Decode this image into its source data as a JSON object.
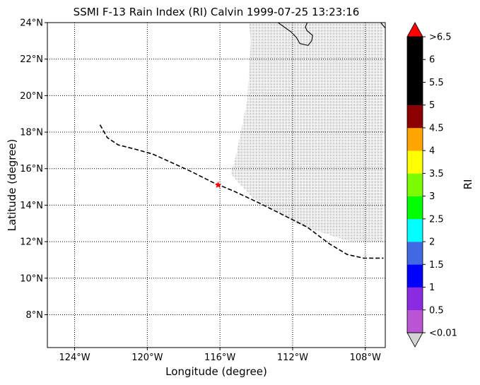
{
  "chart_data": {
    "type": "map",
    "title": "SSMI F-13 Rain Index (RI) Calvin 1999-07-25 13:23:16",
    "xlabel": "Longitude (degree)",
    "ylabel": "Latitude (degree)",
    "xlim": [
      -125.5,
      -106.9
    ],
    "ylim": [
      6.2,
      24.0
    ],
    "x_ticks": [
      -124,
      -120,
      -116,
      -112,
      -108
    ],
    "x_tick_labels": [
      "124°W",
      "120°W",
      "116°W",
      "112°W",
      "108°W"
    ],
    "y_ticks": [
      8,
      10,
      12,
      14,
      16,
      18,
      20,
      22,
      24
    ],
    "y_tick_labels": [
      "8°N",
      "10°N",
      "12°N",
      "14°N",
      "16°N",
      "18°N",
      "20°N",
      "22°N",
      "24°N"
    ],
    "grid": "dotted",
    "swath_color": "#d3d3d3",
    "swath_polygon": [
      {
        "lon": -114.4,
        "lat": 24.0
      },
      {
        "lon": -107.0,
        "lat": 24.0
      },
      {
        "lon": -107.0,
        "lat": 12.0
      },
      {
        "lon": -109.0,
        "lat": 12.05
      },
      {
        "lon": -111.6,
        "lat": 12.9
      },
      {
        "lon": -114.2,
        "lat": 14.4
      },
      {
        "lon": -115.4,
        "lat": 15.7
      },
      {
        "lon": -115.1,
        "lat": 16.8
      },
      {
        "lon": -114.5,
        "lat": 19.7
      },
      {
        "lon": -114.3,
        "lat": 23.0
      }
    ],
    "track": [
      {
        "lon": -122.6,
        "lat": 18.4
      },
      {
        "lon": -122.2,
        "lat": 17.7
      },
      {
        "lon": -121.6,
        "lat": 17.3
      },
      {
        "lon": -120.6,
        "lat": 17.05
      },
      {
        "lon": -119.7,
        "lat": 16.8
      },
      {
        "lon": -118.7,
        "lat": 16.35
      },
      {
        "lon": -117.6,
        "lat": 15.85
      },
      {
        "lon": -116.4,
        "lat": 15.25
      },
      {
        "lon": -115.2,
        "lat": 14.75
      },
      {
        "lon": -113.9,
        "lat": 14.15
      },
      {
        "lon": -112.6,
        "lat": 13.5
      },
      {
        "lon": -111.2,
        "lat": 12.8
      },
      {
        "lon": -110.0,
        "lat": 11.9
      },
      {
        "lon": -109.0,
        "lat": 11.3
      },
      {
        "lon": -108.1,
        "lat": 11.1
      },
      {
        "lon": -107.0,
        "lat": 11.1
      }
    ],
    "storm_position": {
      "lon": -116.1,
      "lat": 15.1
    },
    "storm_marker_color": "#ff0000",
    "coastlines": [
      [
        {
          "lon": -112.8,
          "lat": 24.0
        },
        {
          "lon": -112.1,
          "lat": 23.5
        },
        {
          "lon": -111.8,
          "lat": 23.2
        },
        {
          "lon": -111.6,
          "lat": 22.85
        },
        {
          "lon": -111.15,
          "lat": 22.75
        },
        {
          "lon": -110.95,
          "lat": 23.0
        },
        {
          "lon": -110.9,
          "lat": 23.3
        },
        {
          "lon": -111.2,
          "lat": 23.55
        },
        {
          "lon": -111.3,
          "lat": 23.75
        },
        {
          "lon": -111.2,
          "lat": 24.0
        }
      ],
      [
        {
          "lon": -107.15,
          "lat": 24.0
        },
        {
          "lon": -106.9,
          "lat": 23.7
        }
      ]
    ],
    "colorbar": {
      "label": "RI",
      "tick_labels": [
        "<0.01",
        "0.5",
        "1",
        "1.5",
        "2",
        "2.5",
        "3",
        "3.5",
        "4",
        "4.5",
        "5",
        "5.5",
        "6",
        ">6.5"
      ],
      "colors": [
        "#ba55d3",
        "#8a2be2",
        "#0000ff",
        "#4169e1",
        "#00ffff",
        "#00ff00",
        "#7cfc00",
        "#ffff00",
        "#ffa500",
        "#8b0000",
        "#000000",
        "#000000",
        "#000000"
      ],
      "under_color": "#d3d3d3",
      "over_color": "#ff0000"
    }
  }
}
